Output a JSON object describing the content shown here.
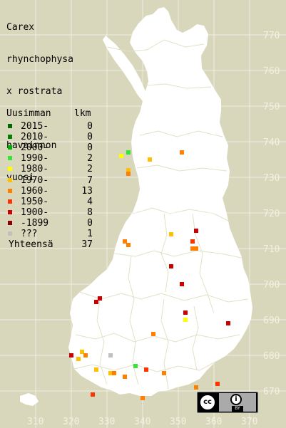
{
  "title": {
    "lines": [
      "Carex",
      "rhynchophysa",
      "x rostrata"
    ]
  },
  "legend": {
    "header_lines": [
      "Uusimman",
      "havainnon",
      "vuosi"
    ],
    "count_header": "lkm",
    "rows": [
      {
        "label": "2015-",
        "count": "0",
        "color": "#006600"
      },
      {
        "label": "2010-",
        "count": "0",
        "color": "#007f00"
      },
      {
        "label": "2000-",
        "count": "0",
        "color": "#00b200"
      },
      {
        "label": "1990-",
        "count": "2",
        "color": "#33e633"
      },
      {
        "label": "1980-",
        "count": "2",
        "color": "#ffff00"
      },
      {
        "label": "1970-",
        "count": "7",
        "color": "#ffc000"
      },
      {
        "label": "1960-",
        "count": "13",
        "color": "#ff7f00"
      },
      {
        "label": "1950-",
        "count": "4",
        "color": "#ff3300"
      },
      {
        "label": "1900-",
        "count": "8",
        "color": "#cc0000"
      },
      {
        "label": "-1899",
        "count": "0",
        "color": "#880000"
      },
      {
        "label": "???",
        "count": "1",
        "color": "#c0c0c0"
      }
    ],
    "total_label": "Yhteensä",
    "total_count": "37"
  },
  "grid": {
    "y_labels": [
      "770",
      "760",
      "750",
      "740",
      "730",
      "720",
      "710",
      "700",
      "690",
      "680",
      "670"
    ],
    "x_labels": [
      "310",
      "320",
      "330",
      "340",
      "350",
      "360",
      "370"
    ],
    "label_color": "#f2f0e0",
    "line_color": "#ffffff"
  },
  "colors": {
    "sea": "#d9d7bb",
    "land": "#ffffff",
    "border": "#d9d7bb"
  },
  "observations": [
    {
      "n": 737,
      "e": 336,
      "period": "1990-"
    },
    {
      "n": 677,
      "e": 338,
      "period": "1990-"
    },
    {
      "n": 736,
      "e": 334,
      "period": "1980-"
    },
    {
      "n": 690,
      "e": 352,
      "period": "1980-"
    },
    {
      "n": 732,
      "e": 336,
      "period": "1970-"
    },
    {
      "n": 735,
      "e": 342,
      "period": "1970-"
    },
    {
      "n": 714,
      "e": 348,
      "period": "1970-"
    },
    {
      "n": 681,
      "e": 323,
      "period": "1970-"
    },
    {
      "n": 679,
      "e": 322,
      "period": "1970-"
    },
    {
      "n": 676,
      "e": 327,
      "period": "1970-"
    },
    {
      "n": 675,
      "e": 331,
      "period": "1970-"
    },
    {
      "n": 737,
      "e": 351,
      "period": "1960-"
    },
    {
      "n": 731,
      "e": 336,
      "period": "1960-"
    },
    {
      "n": 712,
      "e": 335,
      "period": "1960-"
    },
    {
      "n": 711,
      "e": 336,
      "period": "1960-"
    },
    {
      "n": 710,
      "e": 354,
      "period": "1960-"
    },
    {
      "n": 710,
      "e": 355,
      "period": "1960-"
    },
    {
      "n": 686,
      "e": 343,
      "period": "1960-"
    },
    {
      "n": 680,
      "e": 324,
      "period": "1960-"
    },
    {
      "n": 675,
      "e": 332,
      "period": "1960-"
    },
    {
      "n": 674,
      "e": 335,
      "period": "1960-"
    },
    {
      "n": 675,
      "e": 346,
      "period": "1960-"
    },
    {
      "n": 671,
      "e": 355,
      "period": "1960-"
    },
    {
      "n": 668,
      "e": 340,
      "period": "1960-"
    },
    {
      "n": 712,
      "e": 354,
      "period": "1950-"
    },
    {
      "n": 676,
      "e": 341,
      "period": "1950-"
    },
    {
      "n": 672,
      "e": 361,
      "period": "1950-"
    },
    {
      "n": 669,
      "e": 326,
      "period": "1950-"
    },
    {
      "n": 715,
      "e": 355,
      "period": "1900-"
    },
    {
      "n": 705,
      "e": 348,
      "period": "1900-"
    },
    {
      "n": 700,
      "e": 351,
      "period": "1900-"
    },
    {
      "n": 696,
      "e": 328,
      "period": "1900-"
    },
    {
      "n": 695,
      "e": 327,
      "period": "1900-"
    },
    {
      "n": 692,
      "e": 352,
      "period": "1900-"
    },
    {
      "n": 689,
      "e": 364,
      "period": "1900-"
    },
    {
      "n": 680,
      "e": 320,
      "period": "1900-"
    },
    {
      "n": 680,
      "e": 331,
      "period": "???"
    }
  ],
  "license": {
    "cc_label": "cc",
    "by_label": "BY"
  }
}
